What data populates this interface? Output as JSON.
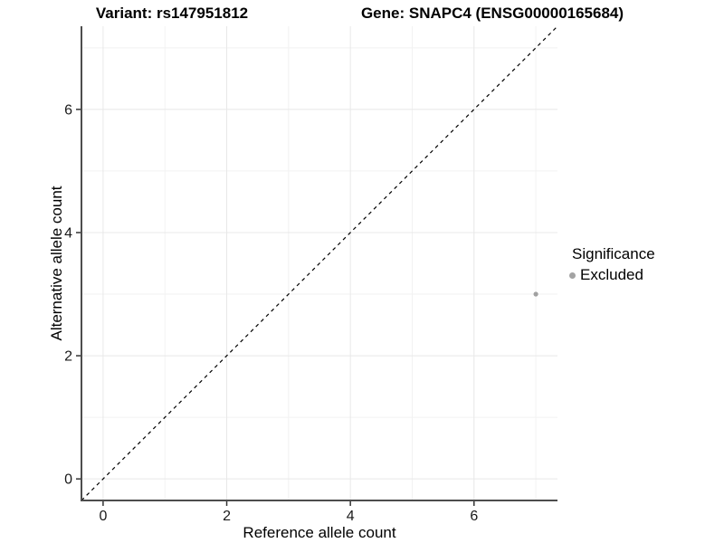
{
  "chart_data": {
    "type": "scatter",
    "titles": {
      "left": "Variant: rs147951812",
      "right": "Gene: SNAPC4 (ENSG00000165684)"
    },
    "xlabel": "Reference allele count",
    "ylabel": "Alternative allele count",
    "xlim": [
      -0.35,
      7.35
    ],
    "ylim": [
      -0.35,
      7.35
    ],
    "x_ticks": [
      0,
      2,
      4,
      6
    ],
    "y_ticks": [
      0,
      2,
      4,
      6
    ],
    "x_minor_gridlines": [
      1,
      3,
      5,
      7
    ],
    "y_minor_gridlines": [
      1,
      3,
      5,
      7
    ],
    "grid": true,
    "reference_line": {
      "style": "dashed",
      "color": "#000000",
      "from": [
        -0.35,
        -0.35
      ],
      "to": [
        7.35,
        7.35
      ]
    },
    "series": [
      {
        "name": "Excluded",
        "marker": "circle",
        "color": "#a1a1a1",
        "point_radius": 2.6,
        "points": [
          [
            7,
            3
          ]
        ]
      }
    ],
    "legend": {
      "position": "right",
      "title": "Significance",
      "items": [
        {
          "label": "Excluded",
          "marker": "circle-icon",
          "color": "#a3a3a3"
        }
      ]
    },
    "colors": {
      "background": "#ffffff",
      "axis_line": "#4d4d4d",
      "tick_mark": "#333333",
      "tick_label": "#1a1a1a",
      "grid_major": "#e8e8e8",
      "grid_minor": "#f2f2f2"
    }
  }
}
